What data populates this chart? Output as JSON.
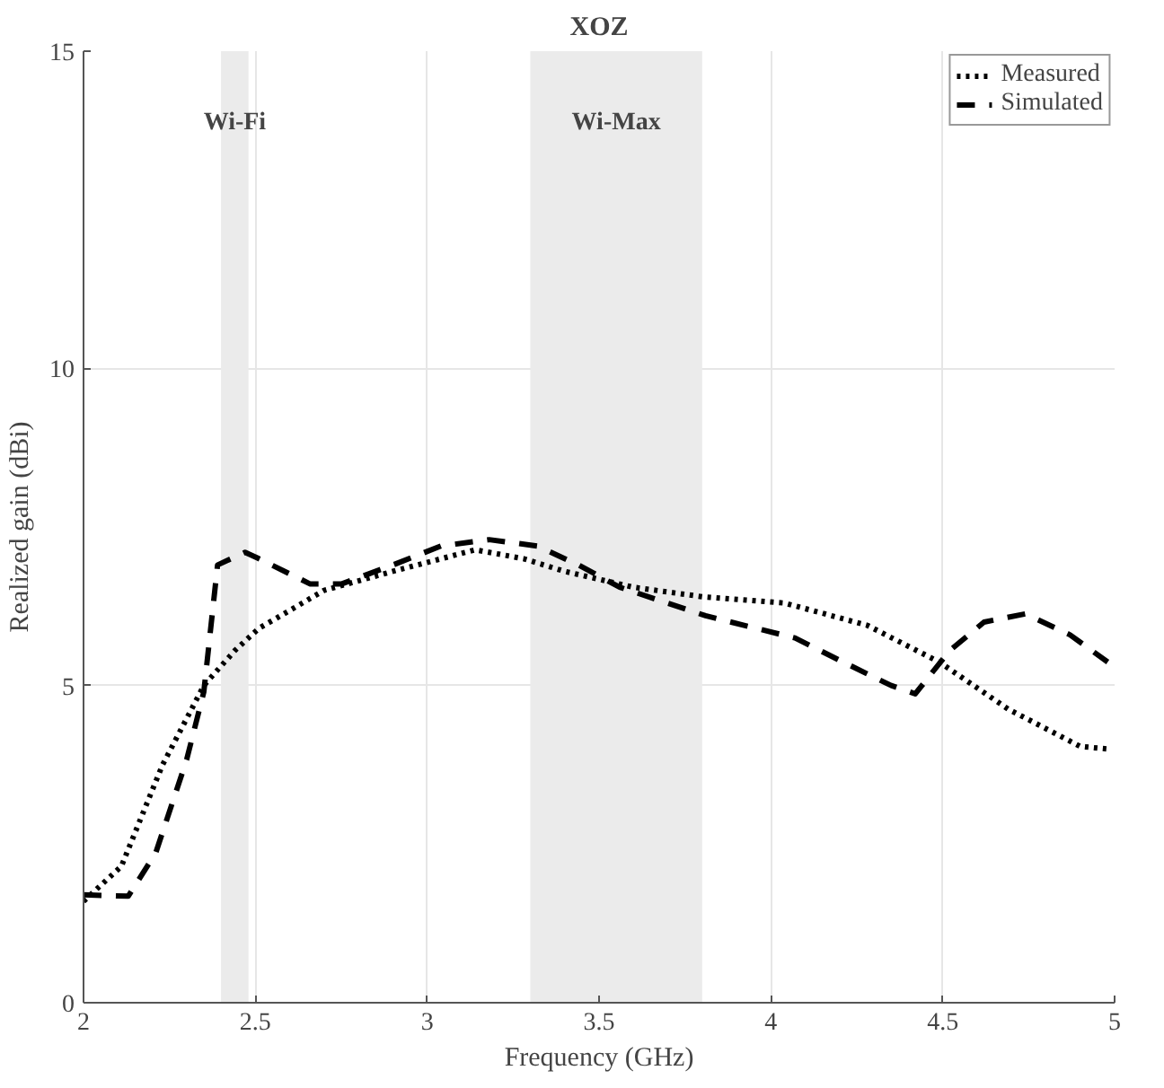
{
  "chart_data": {
    "type": "line",
    "title": "XOZ",
    "xlabel": "Frequency (GHz)",
    "ylabel": "Realized gain (dBi)",
    "xlim": [
      2,
      5
    ],
    "ylim": [
      0,
      15
    ],
    "xticks": [
      2,
      2.5,
      3,
      3.5,
      4,
      4.5,
      5
    ],
    "yticks": [
      0,
      5,
      10,
      15
    ],
    "grid": true,
    "legend": "top right",
    "bands": [
      {
        "axis": "x",
        "from": 2.4,
        "to": 2.48,
        "label": "Wi-Fi",
        "color": "#ebebeb"
      },
      {
        "axis": "x",
        "from": 3.3,
        "to": 3.8,
        "label": "Wi-Max",
        "color": "#ebebeb"
      }
    ],
    "series": [
      {
        "name": "Measured",
        "color": "#000000",
        "line_style": "dotted",
        "x": [
          2.0,
          2.11,
          2.23,
          2.35,
          2.44,
          2.51,
          2.7,
          2.9,
          3.14,
          3.28,
          3.4,
          3.6,
          3.8,
          4.04,
          4.28,
          4.49,
          4.69,
          4.9,
          4.98
        ],
        "values": [
          1.6,
          2.15,
          3.75,
          5.0,
          5.55,
          5.9,
          6.5,
          6.8,
          7.14,
          7.0,
          6.8,
          6.55,
          6.4,
          6.3,
          5.95,
          5.37,
          4.63,
          4.04,
          4.0
        ]
      },
      {
        "name": "Simulated",
        "color": "#000000",
        "line_style": "dashed",
        "x": [
          2.0,
          2.13,
          2.21,
          2.3,
          2.35,
          2.39,
          2.47,
          2.51,
          2.66,
          2.75,
          2.9,
          3.04,
          3.18,
          3.32,
          3.44,
          3.56,
          3.81,
          4.07,
          4.21,
          4.35,
          4.42,
          4.52,
          4.62,
          4.74,
          4.87,
          4.98
        ],
        "values": [
          1.7,
          1.68,
          2.36,
          3.83,
          4.9,
          6.9,
          7.1,
          7.0,
          6.6,
          6.6,
          6.9,
          7.2,
          7.3,
          7.2,
          6.9,
          6.55,
          6.1,
          5.75,
          5.37,
          5.0,
          4.87,
          5.55,
          6.0,
          6.13,
          5.8,
          5.37
        ]
      }
    ]
  }
}
